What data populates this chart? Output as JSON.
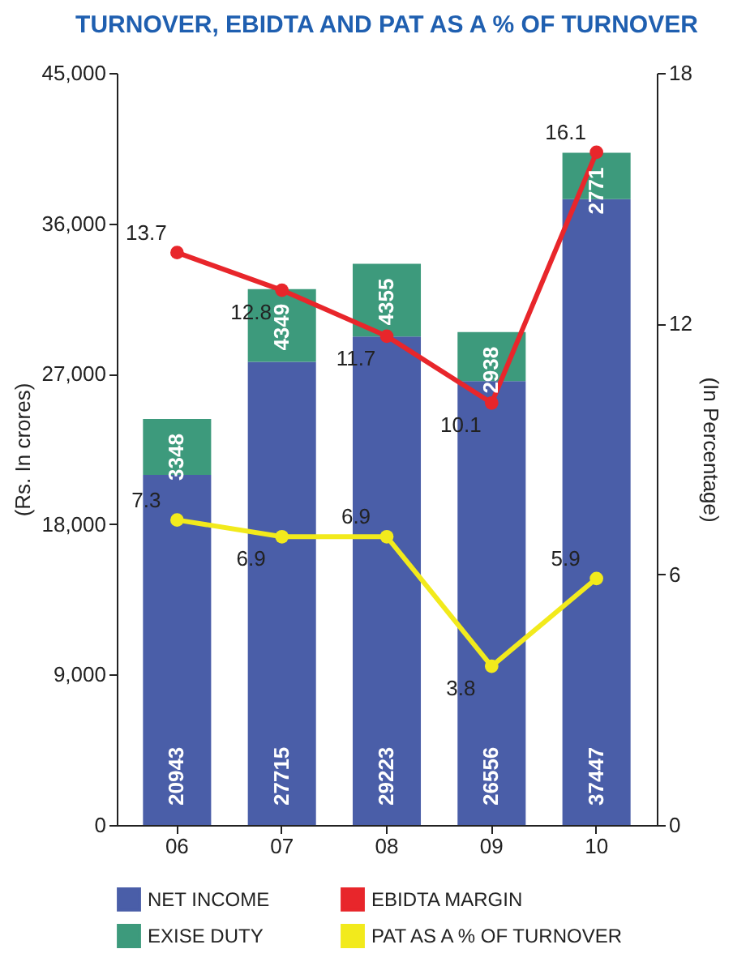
{
  "chart_data": {
    "type": "bar",
    "title": "TURNOVER, EBIDTA AND PAT AS A % OF TURNOVER",
    "ylabel": "(Rs. In crores)",
    "y2label": "(In Percentage)",
    "categories": [
      "06",
      "07",
      "08",
      "09",
      "10"
    ],
    "stacked": true,
    "data_labels": true,
    "legend": "bottom",
    "marker": "circle",
    "grid": false,
    "ylim": [
      0,
      45000
    ],
    "yticks": [
      0,
      {
        "value": 9000,
        "label": "9,000"
      },
      {
        "value": 18000,
        "label": "18,000"
      },
      {
        "value": 27000,
        "label": "27,000"
      },
      {
        "value": 36000,
        "label": "36,000"
      },
      {
        "value": 45000,
        "label": "45,000"
      }
    ],
    "y2lim": [
      0,
      18
    ],
    "y2ticks": [
      0,
      6,
      12,
      18
    ],
    "series": [
      {
        "name": "NET INCOME",
        "type": "bar",
        "color": "#4a5ea8",
        "values": [
          20943,
          27715,
          29223,
          26556,
          37447
        ]
      },
      {
        "name": "EXISE DUTY",
        "type": "bar",
        "color": "#3d9a7c",
        "values": [
          3348,
          4349,
          4355,
          2938,
          2771
        ]
      },
      {
        "name": "EBIDTA MARGIN",
        "type": "line",
        "axis": "y2",
        "color": "#e8262b",
        "values": [
          13.7,
          12.8,
          11.7,
          10.1,
          16.1
        ]
      },
      {
        "name": "PAT AS A % OF TURNOVER",
        "type": "line",
        "axis": "y2",
        "color": "#f2ea1c",
        "values": [
          7.3,
          6.9,
          6.9,
          3.8,
          5.9
        ]
      }
    ]
  }
}
